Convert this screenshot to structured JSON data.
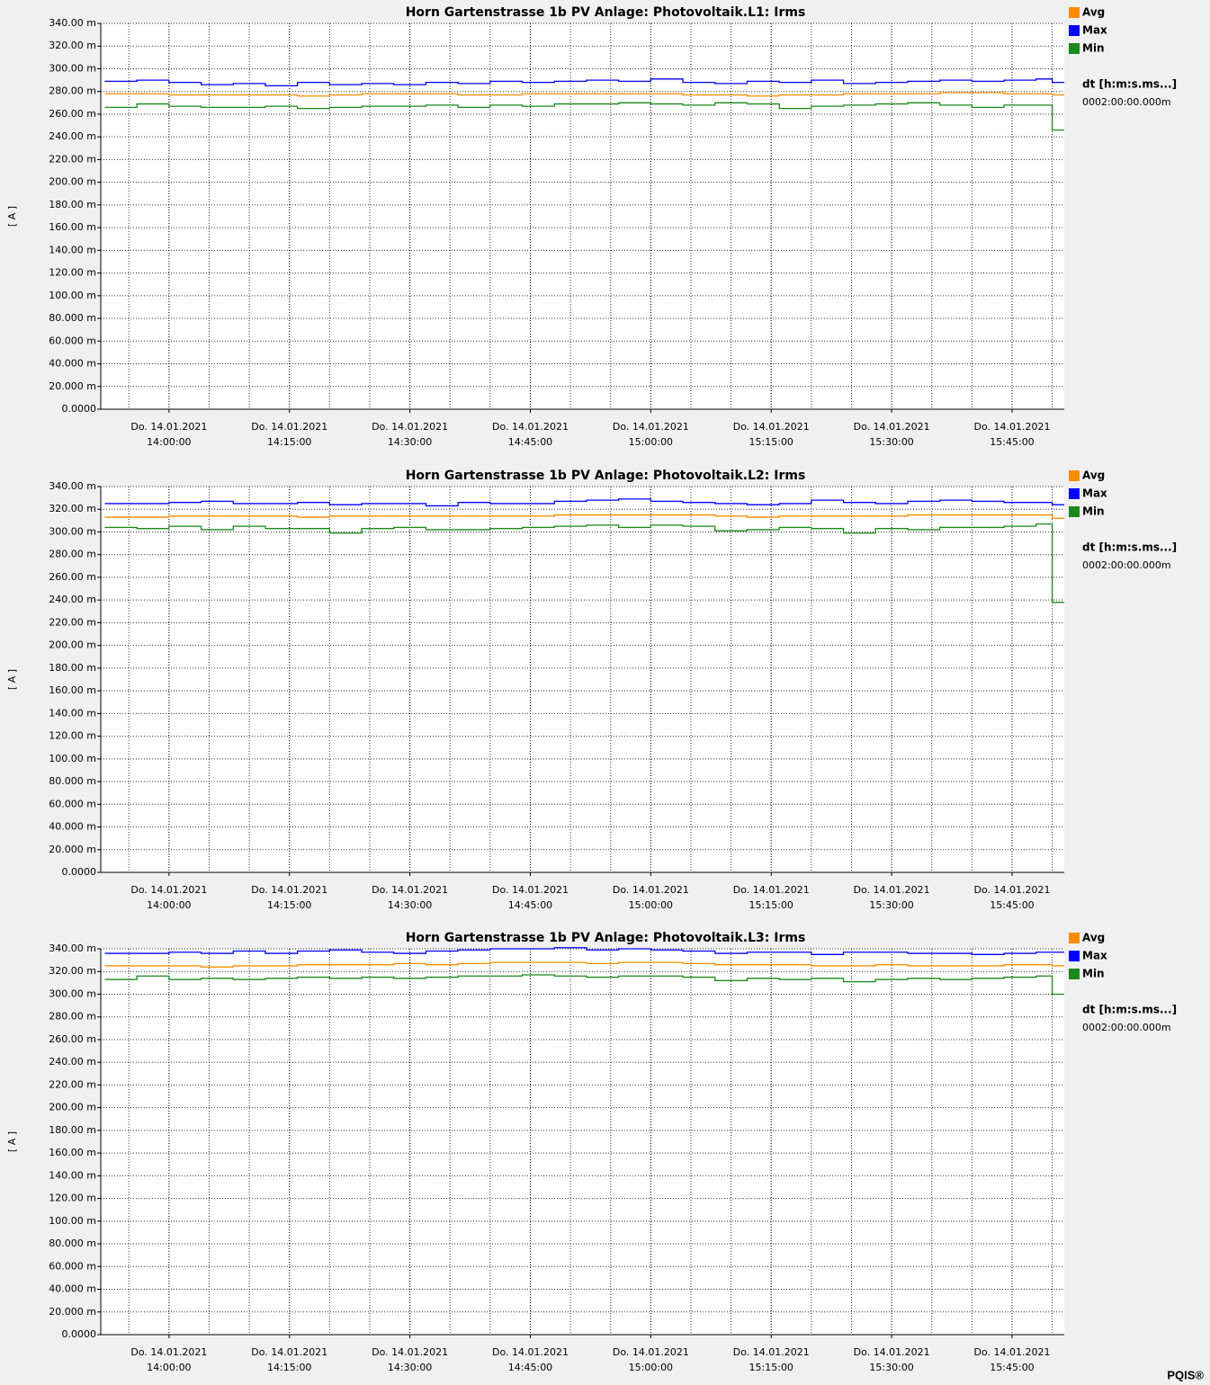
{
  "chart_data": [
    {
      "type": "line",
      "title": "Horn Gartenstrasse 1b PV Anlage:   Photovoltaik.L1:   Irms",
      "y_label": "[ A ]",
      "interval_label": "dt [h:m:s.ms...]",
      "interval": "0002:00:00.000m",
      "legend": "right",
      "grid": true,
      "step": true,
      "x": [
        "13:52:00",
        "13:56:00",
        "14:00:00",
        "14:04:00",
        "14:08:00",
        "14:12:00",
        "14:16:00",
        "14:20:00",
        "14:24:00",
        "14:28:00",
        "14:32:00",
        "14:36:00",
        "14:40:00",
        "14:44:00",
        "14:48:00",
        "14:52:00",
        "14:56:00",
        "15:00:00",
        "15:04:00",
        "15:08:00",
        "15:12:00",
        "15:16:00",
        "15:20:00",
        "15:24:00",
        "15:28:00",
        "15:32:00",
        "15:36:00",
        "15:40:00",
        "15:44:00",
        "15:48:00",
        "15:50:00"
      ],
      "xlim": [
        "13:51:30",
        "15:51:30"
      ],
      "xticks": [
        {
          "value": "14:00:00",
          "label": [
            "Do. 14.01.2021",
            "14:00:00"
          ]
        },
        {
          "value": "14:15:00",
          "label": [
            "Do. 14.01.2021",
            "14:15:00"
          ]
        },
        {
          "value": "14:30:00",
          "label": [
            "Do. 14.01.2021",
            "14:30:00"
          ]
        },
        {
          "value": "14:45:00",
          "label": [
            "Do. 14.01.2021",
            "14:45:00"
          ]
        },
        {
          "value": "15:00:00",
          "label": [
            "Do. 14.01.2021",
            "15:00:00"
          ]
        },
        {
          "value": "15:15:00",
          "label": [
            "Do. 14.01.2021",
            "15:15:00"
          ]
        },
        {
          "value": "15:30:00",
          "label": [
            "Do. 14.01.2021",
            "15:30:00"
          ]
        },
        {
          "value": "15:45:00",
          "label": [
            "Do. 14.01.2021",
            "15:45:00"
          ]
        }
      ],
      "ylim": [
        0,
        340
      ],
      "yticks": [
        {
          "value": 0,
          "label": "0.0000"
        },
        {
          "value": 20,
          "label": "20.000 m"
        },
        {
          "value": 40,
          "label": "40.000 m"
        },
        {
          "value": 60,
          "label": "60.000 m"
        },
        {
          "value": 80,
          "label": "80.000 m"
        },
        {
          "value": 100,
          "label": "100.00 m"
        },
        {
          "value": 120,
          "label": "120.00 m"
        },
        {
          "value": 140,
          "label": "140.00 m"
        },
        {
          "value": 160,
          "label": "160.00 m"
        },
        {
          "value": 180,
          "label": "180.00 m"
        },
        {
          "value": 200,
          "label": "200.00 m"
        },
        {
          "value": 220,
          "label": "220.00 m"
        },
        {
          "value": 240,
          "label": "240.00 m"
        },
        {
          "value": 260,
          "label": "260.00 m"
        },
        {
          "value": 280,
          "label": "280.00 m"
        },
        {
          "value": 300,
          "label": "300.00 m"
        },
        {
          "value": 320,
          "label": "320.00 m"
        },
        {
          "value": 340,
          "label": "340.00 m"
        }
      ],
      "series": [
        {
          "name": "Avg",
          "color": "#ff8c00",
          "values": [
            278,
            278,
            277,
            277,
            277,
            277,
            276,
            277,
            278,
            278,
            278,
            277,
            277,
            278,
            278,
            278,
            278,
            278,
            277,
            277,
            276,
            277,
            277,
            278,
            278,
            278,
            279,
            279,
            278,
            278,
            277
          ]
        },
        {
          "name": "Max",
          "color": "#0000ff",
          "values": [
            289,
            290,
            288,
            286,
            287,
            285,
            288,
            286,
            287,
            286,
            288,
            287,
            289,
            288,
            289,
            290,
            289,
            291,
            288,
            287,
            289,
            288,
            290,
            287,
            288,
            289,
            290,
            289,
            290,
            291,
            288
          ]
        },
        {
          "name": "Min",
          "color": "#1a8a1a",
          "values": [
            266,
            269,
            267,
            266,
            266,
            267,
            265,
            266,
            267,
            267,
            268,
            266,
            268,
            267,
            269,
            269,
            270,
            269,
            268,
            270,
            269,
            265,
            267,
            268,
            269,
            270,
            268,
            266,
            268,
            268,
            246
          ]
        }
      ]
    },
    {
      "type": "line",
      "title": "Horn Gartenstrasse 1b PV Anlage:   Photovoltaik.L2:   Irms",
      "y_label": "[ A ]",
      "interval_label": "dt [h:m:s.ms...]",
      "interval": "0002:00:00.000m",
      "legend": "right",
      "grid": true,
      "step": true,
      "x": [
        "13:52:00",
        "13:56:00",
        "14:00:00",
        "14:04:00",
        "14:08:00",
        "14:12:00",
        "14:16:00",
        "14:20:00",
        "14:24:00",
        "14:28:00",
        "14:32:00",
        "14:36:00",
        "14:40:00",
        "14:44:00",
        "14:48:00",
        "14:52:00",
        "14:56:00",
        "15:00:00",
        "15:04:00",
        "15:08:00",
        "15:12:00",
        "15:16:00",
        "15:20:00",
        "15:24:00",
        "15:28:00",
        "15:32:00",
        "15:36:00",
        "15:40:00",
        "15:44:00",
        "15:48:00",
        "15:50:00"
      ],
      "xlim": [
        "13:51:30",
        "15:51:30"
      ],
      "xticks": [
        {
          "value": "14:00:00",
          "label": [
            "Do. 14.01.2021",
            "14:00:00"
          ]
        },
        {
          "value": "14:15:00",
          "label": [
            "Do. 14.01.2021",
            "14:15:00"
          ]
        },
        {
          "value": "14:30:00",
          "label": [
            "Do. 14.01.2021",
            "14:30:00"
          ]
        },
        {
          "value": "14:45:00",
          "label": [
            "Do. 14.01.2021",
            "14:45:00"
          ]
        },
        {
          "value": "15:00:00",
          "label": [
            "Do. 14.01.2021",
            "15:00:00"
          ]
        },
        {
          "value": "15:15:00",
          "label": [
            "Do. 14.01.2021",
            "15:15:00"
          ]
        },
        {
          "value": "15:30:00",
          "label": [
            "Do. 14.01.2021",
            "15:30:00"
          ]
        },
        {
          "value": "15:45:00",
          "label": [
            "Do. 14.01.2021",
            "15:45:00"
          ]
        }
      ],
      "ylim": [
        0,
        340
      ],
      "yticks": [
        {
          "value": 0,
          "label": "0.0000"
        },
        {
          "value": 20,
          "label": "20.000 m"
        },
        {
          "value": 40,
          "label": "40.000 m"
        },
        {
          "value": 60,
          "label": "60.000 m"
        },
        {
          "value": 80,
          "label": "80.000 m"
        },
        {
          "value": 100,
          "label": "100.00 m"
        },
        {
          "value": 120,
          "label": "120.00 m"
        },
        {
          "value": 140,
          "label": "140.00 m"
        },
        {
          "value": 160,
          "label": "160.00 m"
        },
        {
          "value": 180,
          "label": "180.00 m"
        },
        {
          "value": 200,
          "label": "200.00 m"
        },
        {
          "value": 220,
          "label": "220.00 m"
        },
        {
          "value": 240,
          "label": "240.00 m"
        },
        {
          "value": 260,
          "label": "260.00 m"
        },
        {
          "value": 280,
          "label": "280.00 m"
        },
        {
          "value": 300,
          "label": "300.00 m"
        },
        {
          "value": 320,
          "label": "320.00 m"
        },
        {
          "value": 340,
          "label": "340.00 m"
        }
      ],
      "series": [
        {
          "name": "Avg",
          "color": "#ff8c00",
          "values": [
            313,
            313,
            314,
            314,
            314,
            314,
            313,
            314,
            314,
            314,
            314,
            314,
            314,
            314,
            315,
            315,
            315,
            315,
            315,
            314,
            313,
            314,
            314,
            314,
            314,
            315,
            315,
            315,
            315,
            315,
            312
          ]
        },
        {
          "name": "Max",
          "color": "#0000ff",
          "values": [
            325,
            325,
            326,
            327,
            325,
            325,
            326,
            324,
            325,
            325,
            323,
            326,
            325,
            325,
            327,
            328,
            329,
            327,
            326,
            325,
            324,
            325,
            328,
            326,
            325,
            327,
            328,
            327,
            326,
            326,
            324
          ]
        },
        {
          "name": "Min",
          "color": "#1a8a1a",
          "values": [
            304,
            303,
            305,
            302,
            305,
            303,
            303,
            299,
            303,
            304,
            302,
            302,
            303,
            304,
            305,
            306,
            304,
            306,
            305,
            301,
            302,
            304,
            303,
            299,
            303,
            302,
            304,
            304,
            305,
            307,
            238
          ]
        }
      ]
    },
    {
      "type": "line",
      "title": "Horn Gartenstrasse 1b PV Anlage:   Photovoltaik.L3:   Irms",
      "y_label": "[ A ]",
      "interval_label": "dt [h:m:s.ms...]",
      "interval": "0002:00:00.000m",
      "legend": "right",
      "grid": true,
      "step": true,
      "x": [
        "13:52:00",
        "13:56:00",
        "14:00:00",
        "14:04:00",
        "14:08:00",
        "14:12:00",
        "14:16:00",
        "14:20:00",
        "14:24:00",
        "14:28:00",
        "14:32:00",
        "14:36:00",
        "14:40:00",
        "14:44:00",
        "14:48:00",
        "14:52:00",
        "14:56:00",
        "15:00:00",
        "15:04:00",
        "15:08:00",
        "15:12:00",
        "15:16:00",
        "15:20:00",
        "15:24:00",
        "15:28:00",
        "15:32:00",
        "15:36:00",
        "15:40:00",
        "15:44:00",
        "15:48:00",
        "15:50:00"
      ],
      "xlim": [
        "13:51:30",
        "15:51:30"
      ],
      "xticks": [
        {
          "value": "14:00:00",
          "label": [
            "Do. 14.01.2021",
            "14:00:00"
          ]
        },
        {
          "value": "14:15:00",
          "label": [
            "Do. 14.01.2021",
            "14:15:00"
          ]
        },
        {
          "value": "14:30:00",
          "label": [
            "Do. 14.01.2021",
            "14:30:00"
          ]
        },
        {
          "value": "14:45:00",
          "label": [
            "Do. 14.01.2021",
            "14:45:00"
          ]
        },
        {
          "value": "15:00:00",
          "label": [
            "Do. 14.01.2021",
            "15:00:00"
          ]
        },
        {
          "value": "15:15:00",
          "label": [
            "Do. 14.01.2021",
            "15:15:00"
          ]
        },
        {
          "value": "15:30:00",
          "label": [
            "Do. 14.01.2021",
            "15:30:00"
          ]
        },
        {
          "value": "15:45:00",
          "label": [
            "Do. 14.01.2021",
            "15:45:00"
          ]
        }
      ],
      "ylim": [
        0,
        340
      ],
      "yticks": [
        {
          "value": 0,
          "label": "0.0000"
        },
        {
          "value": 20,
          "label": "20.000 m"
        },
        {
          "value": 40,
          "label": "40.000 m"
        },
        {
          "value": 60,
          "label": "60.000 m"
        },
        {
          "value": 80,
          "label": "80.000 m"
        },
        {
          "value": 100,
          "label": "100.00 m"
        },
        {
          "value": 120,
          "label": "120.00 m"
        },
        {
          "value": 140,
          "label": "140.00 m"
        },
        {
          "value": 160,
          "label": "160.00 m"
        },
        {
          "value": 180,
          "label": "180.00 m"
        },
        {
          "value": 200,
          "label": "200.00 m"
        },
        {
          "value": 220,
          "label": "220.00 m"
        },
        {
          "value": 240,
          "label": "240.00 m"
        },
        {
          "value": 260,
          "label": "260.00 m"
        },
        {
          "value": 280,
          "label": "280.00 m"
        },
        {
          "value": 300,
          "label": "300.00 m"
        },
        {
          "value": 320,
          "label": "320.00 m"
        },
        {
          "value": 340,
          "label": "340.00 m"
        }
      ],
      "series": [
        {
          "name": "Avg",
          "color": "#ff8c00",
          "values": [
            325,
            325,
            325,
            324,
            325,
            325,
            326,
            326,
            326,
            327,
            326,
            327,
            328,
            328,
            328,
            327,
            328,
            328,
            327,
            326,
            326,
            326,
            325,
            325,
            326,
            325,
            325,
            325,
            326,
            326,
            325
          ]
        },
        {
          "name": "Max",
          "color": "#0000ff",
          "values": [
            336,
            336,
            337,
            336,
            338,
            336,
            338,
            339,
            337,
            336,
            338,
            339,
            340,
            340,
            341,
            339,
            340,
            339,
            338,
            336,
            337,
            337,
            335,
            337,
            337,
            336,
            336,
            335,
            336,
            337,
            337
          ]
        },
        {
          "name": "Min",
          "color": "#1a8a1a",
          "values": [
            313,
            316,
            313,
            314,
            313,
            314,
            315,
            314,
            315,
            314,
            315,
            316,
            316,
            317,
            316,
            315,
            316,
            316,
            315,
            312,
            314,
            313,
            314,
            311,
            313,
            314,
            313,
            314,
            315,
            316,
            300
          ]
        }
      ]
    }
  ],
  "footer": "PQIS®"
}
